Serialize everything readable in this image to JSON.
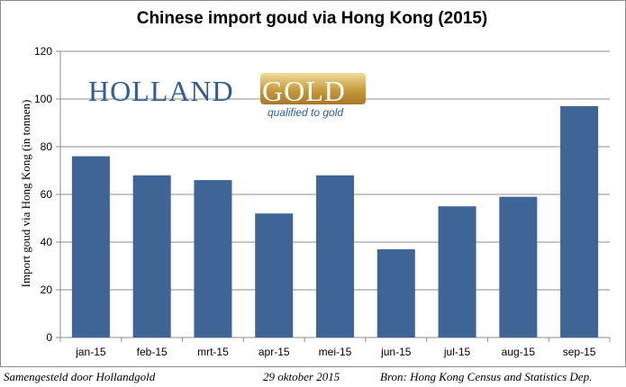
{
  "chart_data": {
    "type": "bar",
    "title": "Chinese import goud via Hong Kong (2015)",
    "ylabel": "Import goud via Hong Kong (in tonnen)",
    "xlabel": "",
    "categories": [
      "jan-15",
      "feb-15",
      "mrt-15",
      "apr-15",
      "mei-15",
      "jun-15",
      "jul-15",
      "aug-15",
      "sep-15"
    ],
    "values": [
      76,
      68,
      66,
      52,
      68,
      37,
      55,
      59,
      97
    ],
    "ylim": [
      0,
      120
    ],
    "yticks": [
      "0",
      "20",
      "40",
      "60",
      "80",
      "100",
      "120"
    ],
    "grid": true,
    "legend": "none",
    "bar_color": "#3f6496"
  },
  "logo": {
    "part1": "HOLLAND",
    "part2": "GOLD",
    "tagline": "qualified to gold",
    "color_blue": "#2e5d9a",
    "color_gold": "#c79a3d"
  },
  "footer": {
    "left": "Samengesteld door Hollandgold",
    "center": "29 oktober 2015",
    "right": "Bron: Hong Kong Census and Statistics Dep."
  }
}
